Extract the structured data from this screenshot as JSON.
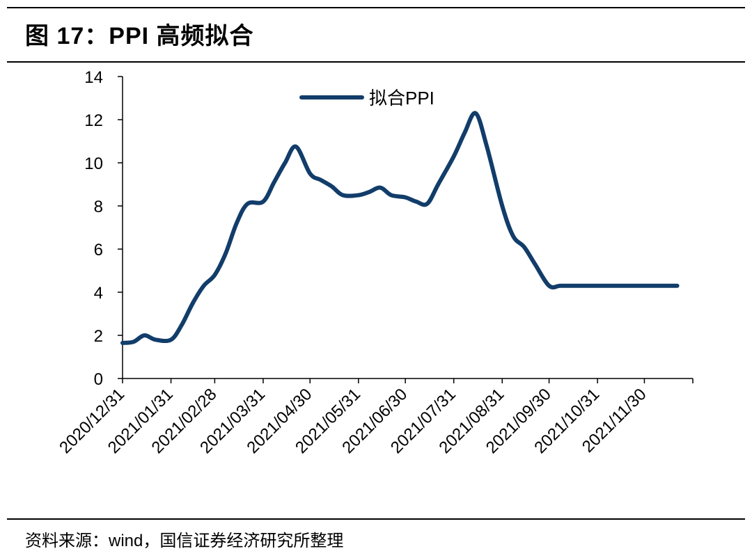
{
  "header": {
    "title": "图 17：PPI 高频拟合"
  },
  "footer": {
    "source": "资料来源：wind，国信证券经济研究所整理"
  },
  "colors": {
    "series": "#123d6a",
    "axis": "#000000"
  },
  "chart_data": {
    "type": "line",
    "title": "",
    "xlabel": "",
    "ylabel": "",
    "ylim": [
      0,
      14
    ],
    "y_ticks": [
      0,
      2,
      4,
      6,
      8,
      10,
      12,
      14
    ],
    "x_tick_labels": [
      "2020/12/31",
      "2021/01/31",
      "2021/02/28",
      "2021/03/31",
      "2021/04/30",
      "2021/05/31",
      "2021/06/30",
      "2021/07/31",
      "2021/08/31",
      "2021/09/30",
      "2021/10/31",
      "2021/11/30"
    ],
    "xlim": [
      "2020/12/31",
      "2021/12/31"
    ],
    "legend": {
      "position": "top-center"
    },
    "grid": false,
    "series": [
      {
        "name": "拟合PPI",
        "x": [
          "2020/12/31",
          "2021/01/07",
          "2021/01/14",
          "2021/01/21",
          "2021/01/31",
          "2021/02/07",
          "2021/02/14",
          "2021/02/21",
          "2021/02/28",
          "2021/03/07",
          "2021/03/14",
          "2021/03/21",
          "2021/03/31",
          "2021/04/07",
          "2021/04/14",
          "2021/04/21",
          "2021/04/30",
          "2021/05/07",
          "2021/05/14",
          "2021/05/21",
          "2021/05/31",
          "2021/06/07",
          "2021/06/14",
          "2021/06/21",
          "2021/06/30",
          "2021/07/07",
          "2021/07/14",
          "2021/07/21",
          "2021/07/31",
          "2021/08/07",
          "2021/08/14",
          "2021/08/21",
          "2021/08/31",
          "2021/09/07",
          "2021/09/14",
          "2021/09/21",
          "2021/09/30",
          "2021/10/07",
          "2021/10/14",
          "2021/10/21",
          "2021/10/31",
          "2021/11/07",
          "2021/11/14",
          "2021/11/21",
          "2021/11/30",
          "2021/12/07",
          "2021/12/14",
          "2021/12/21"
        ],
        "values": [
          1.65,
          1.7,
          2.0,
          1.8,
          1.8,
          2.5,
          3.5,
          4.3,
          4.8,
          5.8,
          7.2,
          8.1,
          8.2,
          9.1,
          10.0,
          10.75,
          9.5,
          9.2,
          8.9,
          8.5,
          8.5,
          8.65,
          8.85,
          8.5,
          8.4,
          8.2,
          8.1,
          9.0,
          10.3,
          11.4,
          12.3,
          10.8,
          8.0,
          6.6,
          6.1,
          5.3,
          4.3,
          4.3,
          4.3,
          4.3,
          4.3,
          4.3,
          4.3,
          4.3,
          4.3,
          4.3,
          4.3,
          4.3
        ]
      }
    ]
  }
}
